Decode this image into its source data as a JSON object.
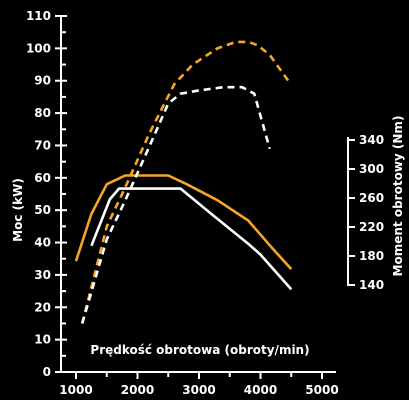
{
  "chart_data": {
    "type": "line",
    "xlabel": "Prędkość obrotowa (obroty/min)",
    "ylabel": "Moc (kW)",
    "y2label": "Moment obrotowy (Nm)",
    "x_ticks": [
      "1000",
      "2000",
      "3000",
      "4000",
      "5000"
    ],
    "y_ticks": [
      "0",
      "10",
      "20",
      "30",
      "40",
      "50",
      "60",
      "70",
      "80",
      "90",
      "100",
      "110"
    ],
    "y2_ticks": [
      "140",
      "180",
      "220",
      "260",
      "300",
      "340"
    ],
    "xlim": [
      1000,
      5000
    ],
    "ylim": [
      0,
      110
    ],
    "y2lim": [
      140,
      340
    ],
    "grid": false,
    "colors": {
      "background": "#000000",
      "orange": "#f5a623",
      "white": "#ffffff"
    },
    "series": [
      {
        "style": "solid",
        "color": "#f5a623",
        "axis": "right",
        "x": [
          1000,
          1250,
          1500,
          1800,
          2500,
          2800,
          3300,
          3800,
          4200,
          4500
        ],
        "y": [
          173,
          238,
          279,
          291,
          291,
          279,
          257,
          229,
          190,
          162
        ]
      },
      {
        "style": "solid",
        "color": "#ffffff",
        "axis": "right",
        "x": [
          1250,
          1550,
          1700,
          2700,
          3200,
          3800,
          4000,
          4500
        ],
        "y": [
          194,
          258,
          273,
          273,
          238,
          197,
          182,
          134
        ]
      },
      {
        "style": "dashed",
        "color": "#f5a623",
        "axis": "left",
        "x": [
          1100,
          1300,
          1500,
          1800,
          2200,
          2600,
          2900,
          3300,
          3600,
          3800,
          3950,
          4150,
          4450
        ],
        "y": [
          15,
          30,
          45,
          57,
          74,
          89,
          95,
          100,
          102,
          102,
          101,
          98,
          90
        ]
      },
      {
        "style": "dashed",
        "color": "#ffffff",
        "axis": "left",
        "x": [
          1100,
          1300,
          1500,
          1800,
          2200,
          2500,
          2700,
          3000,
          3400,
          3700,
          3900,
          4150
        ],
        "y": [
          15,
          28,
          41,
          53,
          70,
          83,
          86,
          87,
          88,
          88,
          86,
          69
        ]
      }
    ]
  }
}
